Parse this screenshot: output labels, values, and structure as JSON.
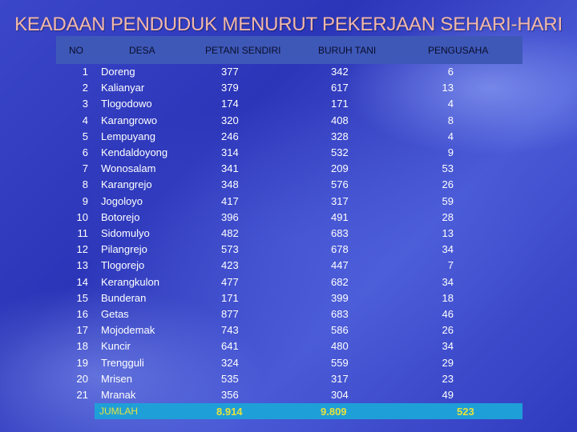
{
  "title": "KEADAAN PENDUDUK MENURUT PEKERJAAN SEHARI-HARI",
  "headers": {
    "no": "NO",
    "desa": "DESA",
    "petani": "PETANI SENDIRI",
    "buruh": "BURUH TANI",
    "pengusaha": "PENGUSAHA"
  },
  "rows": [
    {
      "no": "1",
      "desa": "Doreng",
      "petani": "377",
      "buruh": "342",
      "pengusaha": "6"
    },
    {
      "no": "2",
      "desa": "Kalianyar",
      "petani": "379",
      "buruh": "617",
      "pengusaha": "13"
    },
    {
      "no": "3",
      "desa": "Tlogodowo",
      "petani": "174",
      "buruh": "171",
      "pengusaha": "4"
    },
    {
      "no": "4",
      "desa": "Karangrowo",
      "petani": "320",
      "buruh": "408",
      "pengusaha": "8"
    },
    {
      "no": "5",
      "desa": "Lempuyang",
      "petani": "246",
      "buruh": "328",
      "pengusaha": "4"
    },
    {
      "no": "6",
      "desa": "Kendaldoyong",
      "petani": "314",
      "buruh": "532",
      "pengusaha": "9"
    },
    {
      "no": "7",
      "desa": "Wonosalam",
      "petani": "341",
      "buruh": "209",
      "pengusaha": "53"
    },
    {
      "no": "8",
      "desa": "Karangrejo",
      "petani": "348",
      "buruh": "576",
      "pengusaha": "26"
    },
    {
      "no": "9",
      "desa": "Jogoloyo",
      "petani": "417",
      "buruh": "317",
      "pengusaha": "59"
    },
    {
      "no": "10",
      "desa": "Botorejo",
      "petani": "396",
      "buruh": "491",
      "pengusaha": "28"
    },
    {
      "no": "11",
      "desa": "Sidomulyo",
      "petani": "482",
      "buruh": "683",
      "pengusaha": "13"
    },
    {
      "no": "12",
      "desa": "Pilangrejo",
      "petani": "573",
      "buruh": "678",
      "pengusaha": "34"
    },
    {
      "no": "13",
      "desa": "Tlogorejo",
      "petani": "423",
      "buruh": "447",
      "pengusaha": "7"
    },
    {
      "no": "14",
      "desa": "Kerangkulon",
      "petani": "477",
      "buruh": "682",
      "pengusaha": "34"
    },
    {
      "no": "15",
      "desa": "Bunderan",
      "petani": "171",
      "buruh": "399",
      "pengusaha": "18"
    },
    {
      "no": "16",
      "desa": "Getas",
      "petani": "877",
      "buruh": "683",
      "pengusaha": "46"
    },
    {
      "no": "17",
      "desa": "Mojodemak",
      "petani": "743",
      "buruh": "586",
      "pengusaha": "26"
    },
    {
      "no": "18",
      "desa": "Kuncir",
      "petani": "641",
      "buruh": "480",
      "pengusaha": "34"
    },
    {
      "no": "19",
      "desa": "Trengguli",
      "petani": "324",
      "buruh": "559",
      "pengusaha": "29"
    },
    {
      "no": "20",
      "desa": "Mrisen",
      "petani": "535",
      "buruh": "317",
      "pengusaha": "23"
    },
    {
      "no": "21",
      "desa": "Mranak",
      "petani": "356",
      "buruh": "304",
      "pengusaha": "49"
    }
  ],
  "total": {
    "label": "JUMLAH",
    "petani": "8.914",
    "buruh": "9.809",
    "pengusaha": "523"
  }
}
